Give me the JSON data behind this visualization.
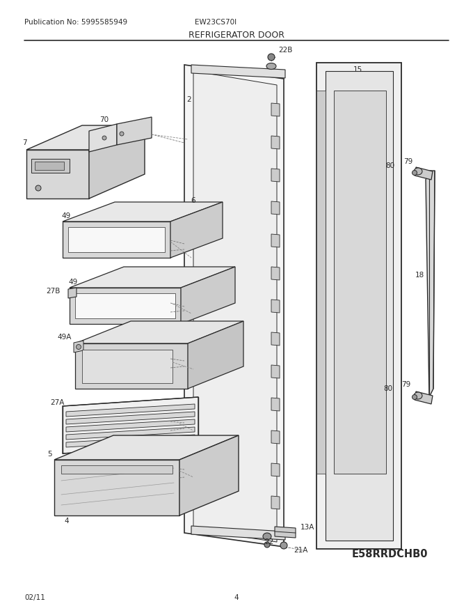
{
  "pub_no": "Publication No: 5995585949",
  "model": "EW23CS70I",
  "title": "REFRIGERATOR DOOR",
  "diagram_code": "E58RRDCHB0",
  "date": "02/11",
  "page": "4",
  "bg_color": "#ffffff",
  "lc": "#2a2a2a",
  "tc": "#2a2a2a"
}
